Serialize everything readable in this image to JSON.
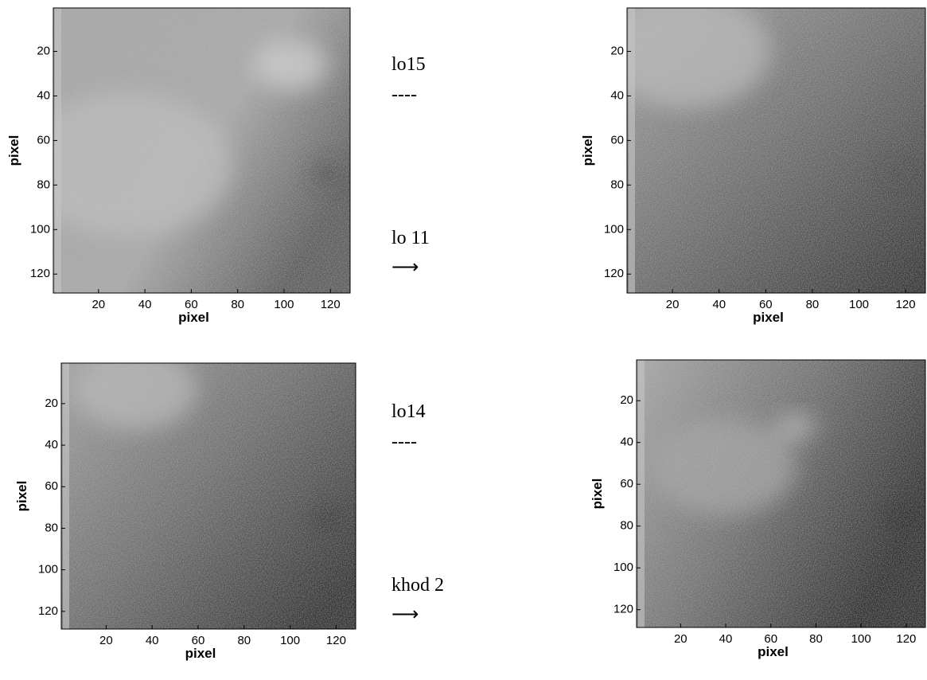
{
  "chart_data": [
    {
      "type": "image",
      "xlabel": "pixel",
      "ylabel": "pixel",
      "xlim": [
        0.5,
        128.5
      ],
      "ylim": [
        0.5,
        128.5
      ],
      "y_reversed": true,
      "xticks": [
        20,
        40,
        60,
        80,
        100,
        120
      ],
      "yticks": [
        20,
        40,
        60,
        80,
        100,
        120
      ]
    },
    {
      "type": "image",
      "xlabel": "pixel",
      "ylabel": "pixel",
      "xlim": [
        0.5,
        128.5
      ],
      "ylim": [
        0.5,
        128.5
      ],
      "y_reversed": true,
      "xticks": [
        20,
        40,
        60,
        80,
        100,
        120
      ],
      "yticks": [
        20,
        40,
        60,
        80,
        100,
        120
      ]
    },
    {
      "type": "image",
      "xlabel": "pixel",
      "ylabel": "pixel",
      "xlim": [
        0.5,
        128.5
      ],
      "ylim": [
        0.5,
        128.5
      ],
      "y_reversed": true,
      "xticks": [
        20,
        40,
        60,
        80,
        100,
        120
      ],
      "yticks": [
        20,
        40,
        60,
        80,
        100,
        120
      ]
    },
    {
      "type": "image",
      "xlabel": "pixel",
      "ylabel": "pixel",
      "xlim": [
        0.5,
        128.5
      ],
      "ylim": [
        0.5,
        128.5
      ],
      "y_reversed": true,
      "xticks": [
        20,
        40,
        60,
        80,
        100,
        120
      ],
      "yticks": [
        20,
        40,
        60,
        80,
        100,
        120
      ]
    }
  ],
  "annotations": [
    "lo15",
    "----",
    "lo 11",
    "⟶",
    "lo14",
    "----",
    "khod 2",
    "⟶"
  ]
}
